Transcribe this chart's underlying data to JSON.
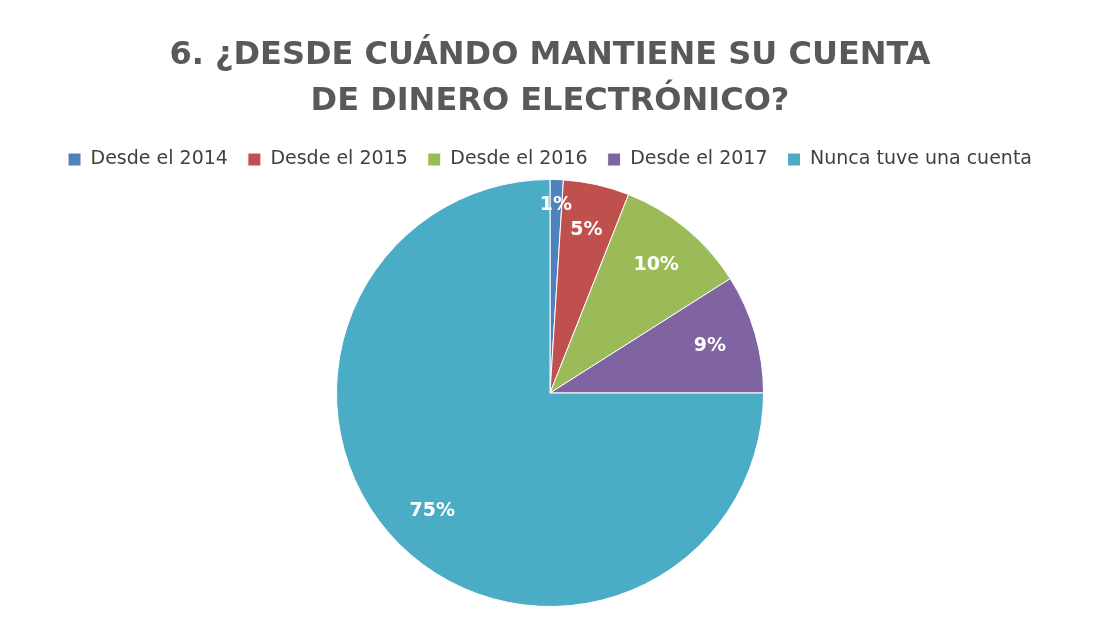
{
  "chart_data": {
    "type": "pie",
    "title": "6. ¿DESDE CUÁNDO MANTIENE SU CUENTA DE DINERO ELECTRÓNICO?",
    "categories": [
      "Desde el 2014",
      "Desde el 2015",
      "Desde el 2016",
      "Desde el 2017",
      "Nunca tuve una cuenta"
    ],
    "values": [
      1,
      5,
      10,
      9,
      75
    ],
    "colors": [
      "#4f81bd",
      "#c0504d",
      "#9bbb59",
      "#8064a2",
      "#4bacc6"
    ],
    "value_labels": [
      "1%",
      "5%",
      "10%",
      "9%",
      "75%"
    ],
    "legend": "top"
  }
}
